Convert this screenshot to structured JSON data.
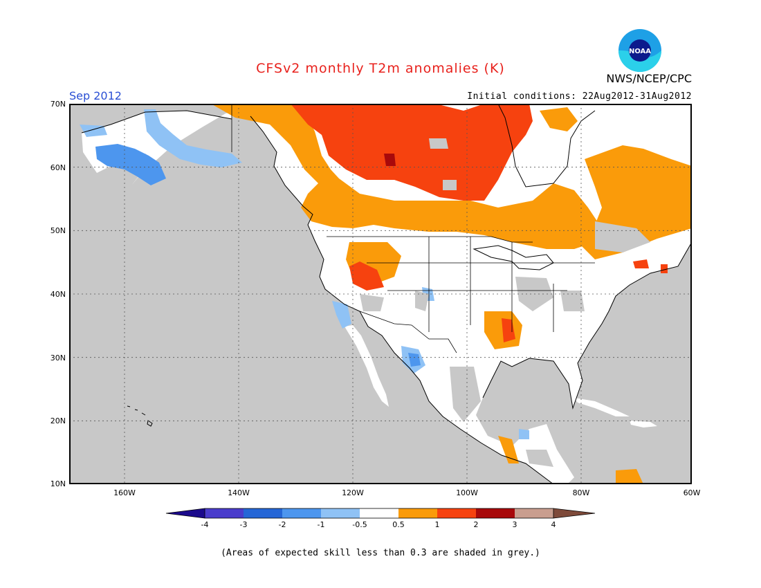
{
  "title": "CFSv2 monthly T2m anomalies (K)",
  "organization": "NWS/NCEP/CPC",
  "logo_text": "NOAA",
  "valid_month": "Sep 2012",
  "initial_conditions": "Initial conditions: 22Aug2012-31Aug2012",
  "footnote": "(Areas of expected skill less than 0.3 are shaded in grey.)",
  "map": {
    "lat_labels": [
      "70N",
      "60N",
      "50N",
      "40N",
      "30N",
      "20N",
      "10N"
    ],
    "lon_labels": [
      "160W",
      "140W",
      "120W",
      "100W",
      "80W",
      "60W"
    ]
  },
  "colorbar": {
    "labels": [
      "-4",
      "-3",
      "-2",
      "-1",
      "-0.5",
      "0.5",
      "1",
      "2",
      "3",
      "4"
    ],
    "colors": {
      "below_min": "#1b0a8c",
      "m4_m3": "#4a3ccc",
      "m3_m2": "#2566d6",
      "m2_m1": "#4d96ee",
      "m1_m05": "#8fc2f5",
      "neutral": "#ffffff",
      "p05_p1": "#fa9b0a",
      "p1_p2": "#f6420f",
      "p2_p3": "#a8090b",
      "p3_p4": "#c99e8f",
      "above_max": "#7e4a3a"
    }
  },
  "colors": {
    "title": "#e8211c",
    "month": "#2a4fd4",
    "skill_grey": "#c8c8c8"
  }
}
